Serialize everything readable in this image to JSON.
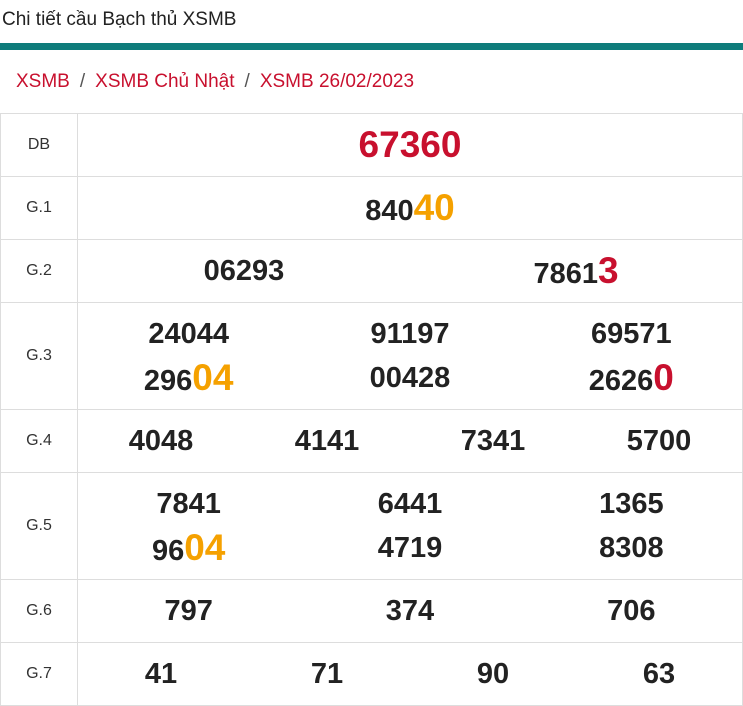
{
  "header": {
    "title": "Chi tiết cầu Bạch thủ XSMB"
  },
  "breadcrumb": {
    "items": [
      "XSMB",
      "XSMB Chủ Nhật",
      "XSMB 26/02/2023"
    ],
    "separator": "/"
  },
  "table": {
    "rows": [
      {
        "label": "DB",
        "lines": [
          [
            {
              "parts": [
                "67360"
              ],
              "highlight": "#c8102e"
            }
          ]
        ]
      },
      {
        "label": "G.1",
        "lines": [
          [
            {
              "parts": [
                "840",
                "40"
              ],
              "highlight": "#f5a100"
            }
          ]
        ]
      },
      {
        "label": "G.2",
        "lines": [
          [
            {
              "parts": [
                "06293"
              ]
            },
            {
              "parts": [
                "7861",
                "3"
              ],
              "highlight": "#c8102e"
            }
          ]
        ]
      },
      {
        "label": "G.3",
        "lines": [
          [
            {
              "parts": [
                "24044"
              ]
            },
            {
              "parts": [
                "91197"
              ]
            },
            {
              "parts": [
                "69571"
              ]
            }
          ],
          [
            {
              "parts": [
                "296",
                "04"
              ],
              "highlight": "#f5a100"
            },
            {
              "parts": [
                "00428"
              ]
            },
            {
              "parts": [
                "2626",
                "0"
              ],
              "highlight": "#c8102e"
            }
          ]
        ]
      },
      {
        "label": "G.4",
        "lines": [
          [
            {
              "parts": [
                "4048"
              ]
            },
            {
              "parts": [
                "4141"
              ]
            },
            {
              "parts": [
                "7341"
              ]
            },
            {
              "parts": [
                "5700"
              ]
            }
          ]
        ]
      },
      {
        "label": "G.5",
        "lines": [
          [
            {
              "parts": [
                "7841"
              ]
            },
            {
              "parts": [
                "6441"
              ]
            },
            {
              "parts": [
                "1365"
              ]
            }
          ],
          [
            {
              "parts": [
                "96",
                "04"
              ],
              "highlight": "#f5a100"
            },
            {
              "parts": [
                "4719"
              ]
            },
            {
              "parts": [
                "8308"
              ]
            }
          ]
        ]
      },
      {
        "label": "G.6",
        "lines": [
          [
            {
              "parts": [
                "797"
              ]
            },
            {
              "parts": [
                "374"
              ]
            },
            {
              "parts": [
                "706"
              ]
            }
          ]
        ]
      },
      {
        "label": "G.7",
        "lines": [
          [
            {
              "parts": [
                "41"
              ]
            },
            {
              "parts": [
                "71"
              ]
            },
            {
              "parts": [
                "90"
              ]
            },
            {
              "parts": [
                "63"
              ]
            }
          ]
        ]
      }
    ]
  }
}
